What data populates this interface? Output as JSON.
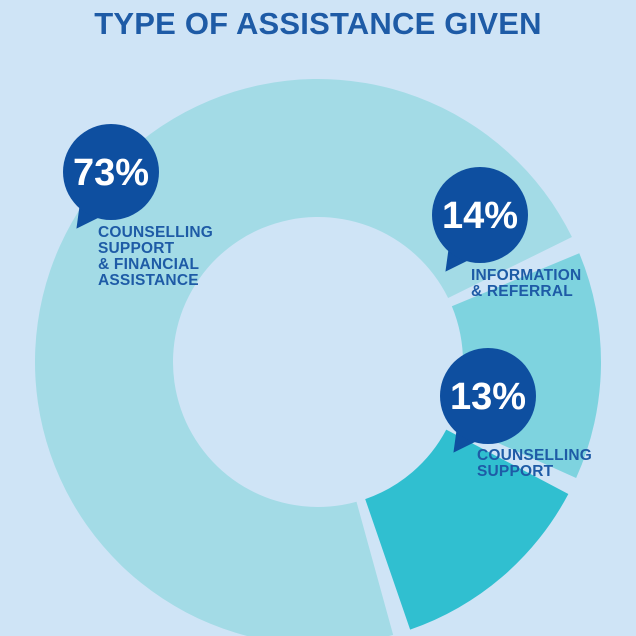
{
  "title": "TYPE OF ASSISTANCE GIVEN",
  "colors": {
    "background": "#cfe4f6",
    "title": "#1e5ba6",
    "pin": "#0e4fa0",
    "label": "#1e5ba6"
  },
  "chart_data": {
    "type": "pie",
    "title": "TYPE OF ASSISTANCE GIVEN",
    "donut": true,
    "slices": [
      {
        "label": "COUNSELLING\nSUPPORT\n& FINANCIAL\nASSISTANCE",
        "value": 73,
        "display": "73%",
        "color": "#a3dbe6"
      },
      {
        "label": "INFORMATION\n& REFERRAL",
        "value": 14,
        "display": "14%",
        "color": "#7ed3df"
      },
      {
        "label": "COUNSELLING\nSUPPORT",
        "value": 13,
        "display": "13%",
        "color": "#30bfd0"
      }
    ]
  }
}
